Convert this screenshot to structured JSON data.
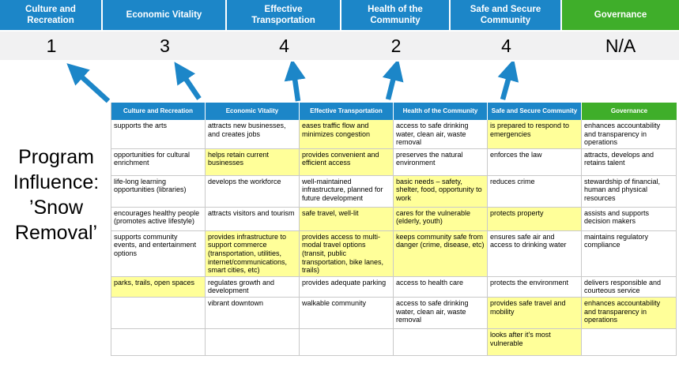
{
  "colors": {
    "blue": "#1C86C8",
    "green": "#3FAE2A",
    "yellow": "#FFFF99",
    "score_band": "#F1F1F2"
  },
  "scoreboard": {
    "columns": [
      {
        "label": "Culture and Recreation",
        "score": "1"
      },
      {
        "label": "Economic Vitality",
        "score": "3"
      },
      {
        "label": "Effective Transportation",
        "score": "4"
      },
      {
        "label": "Health of the Community",
        "score": "2"
      },
      {
        "label": "Safe and Secure Community",
        "score": "4"
      },
      {
        "label": "Governance",
        "score": "N/A"
      }
    ]
  },
  "program_title": {
    "lines": [
      "Program",
      "Influence:",
      "’Snow",
      "Removal’"
    ]
  },
  "matrix": {
    "headers": [
      "Culture and Recreation",
      "Economic Vitality",
      "Effective Transportation",
      "Health of the Community",
      "Safe and Secure Community",
      "Governance"
    ],
    "rows": [
      [
        {
          "t": "supports the arts",
          "h": false
        },
        {
          "t": "attracts new businesses, and creates jobs",
          "h": false
        },
        {
          "t": "eases traffic flow and minimizes congestion",
          "h": true
        },
        {
          "t": "access to safe drinking water, clean air, waste removal",
          "h": false
        },
        {
          "t": "is prepared to respond to emergencies",
          "h": true
        },
        {
          "t": "enhances accountability and transparency in operations",
          "h": false
        }
      ],
      [
        {
          "t": "opportunities for cultural enrichment",
          "h": false
        },
        {
          "t": "helps retain current businesses",
          "h": true
        },
        {
          "t": "provides convenient and efficient access",
          "h": true
        },
        {
          "t": "preserves the natural environment",
          "h": false
        },
        {
          "t": "enforces the law",
          "h": false
        },
        {
          "t": "attracts, develops and retains talent",
          "h": false
        }
      ],
      [
        {
          "t": "life-long learning opportunities (libraries)",
          "h": false
        },
        {
          "t": "develops the workforce",
          "h": false
        },
        {
          "t": "well-maintained infrastructure, planned for future development",
          "h": false
        },
        {
          "t": "basic needs – safety, shelter, food, opportunity to work",
          "h": true
        },
        {
          "t": "reduces crime",
          "h": false
        },
        {
          "t": "stewardship of financial, human and physical resources",
          "h": false
        }
      ],
      [
        {
          "t": "encourages healthy people (promotes active lifestyle)",
          "h": false
        },
        {
          "t": "attracts visitors and tourism",
          "h": false
        },
        {
          "t": "safe travel, well-lit",
          "h": true
        },
        {
          "t": "cares for the vulnerable (elderly, youth)",
          "h": true
        },
        {
          "t": "protects property",
          "h": true
        },
        {
          "t": "assists and supports decision makers",
          "h": false
        }
      ],
      [
        {
          "t": "supports community events, and entertainment options",
          "h": false
        },
        {
          "t": "provides infrastructure to support commerce (transportation, utilities, internet/communications, smart cities, etc)",
          "h": true
        },
        {
          "t": "provides access to multi-modal travel options (transit, public transportation, bike lanes, trails)",
          "h": true
        },
        {
          "t": "keeps community safe from danger (crime, disease, etc)",
          "h": true
        },
        {
          "t": "ensures safe air and access to drinking water",
          "h": false
        },
        {
          "t": "maintains regulatory compliance",
          "h": false
        }
      ],
      [
        {
          "t": "parks, trails, open spaces",
          "h": true
        },
        {
          "t": "regulates growth and development",
          "h": false
        },
        {
          "t": "provides adequate parking",
          "h": false
        },
        {
          "t": "access to health care",
          "h": false
        },
        {
          "t": "protects the environment",
          "h": false
        },
        {
          "t": "delivers responsible and courteous service",
          "h": false
        }
      ],
      [
        {
          "t": "",
          "h": false
        },
        {
          "t": "vibrant downtown",
          "h": false
        },
        {
          "t": "walkable community",
          "h": false
        },
        {
          "t": "access to safe drinking water, clean air, waste removal",
          "h": false
        },
        {
          "t": "provides safe travel and mobility",
          "h": true
        },
        {
          "t": "enhances accountability and transparency in operations",
          "h": true
        }
      ],
      [
        {
          "t": "",
          "h": false
        },
        {
          "t": "",
          "h": false
        },
        {
          "t": "",
          "h": false
        },
        {
          "t": "",
          "h": false
        },
        {
          "t": "looks after it's most vulnerable",
          "h": true
        },
        {
          "t": "",
          "h": false
        }
      ]
    ]
  }
}
